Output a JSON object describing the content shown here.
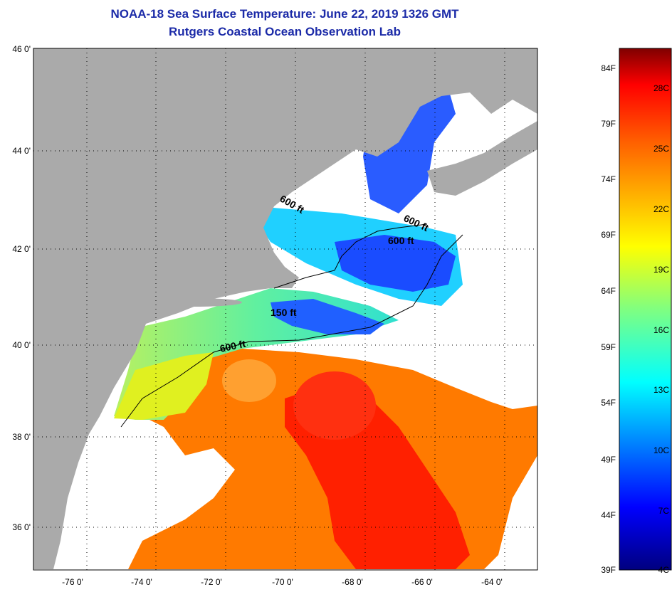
{
  "title": {
    "line1": "NOAA-18 Sea Surface Temperature:  June 22, 2019 1326 GMT",
    "line2": "Rutgers Coastal Ocean Observation Lab"
  },
  "axes": {
    "lat_labels": [
      "46 0'",
      "44 0'",
      "42 0'",
      "40 0'",
      "38 0'",
      "36 0'"
    ],
    "lon_labels": [
      "-76 0'",
      "-74 0'",
      "-72 0'",
      "-70 0'",
      "-68 0'",
      "-66 0'",
      "-64 0'"
    ]
  },
  "contour_labels": [
    "600 ft",
    "600 ft",
    "600 ft",
    "150 ft",
    "600 ft"
  ],
  "colorbar": {
    "fahrenheit_labels": [
      "84F",
      "79F",
      "74F",
      "69F",
      "64F",
      "59F",
      "54F",
      "49F",
      "44F",
      "39F"
    ],
    "celsius_labels": [
      "28C",
      "25C",
      "22C",
      "19C",
      "16C",
      "13C",
      "10C",
      "7C",
      "4C"
    ]
  },
  "colors": {
    "land": "#aaaaaa",
    "title": "#1c2ba8",
    "colormap": [
      "#00007f",
      "#0000ff",
      "#0080ff",
      "#00ffff",
      "#80ff80",
      "#ffff00",
      "#ff8000",
      "#ff0000",
      "#7f0000"
    ]
  }
}
